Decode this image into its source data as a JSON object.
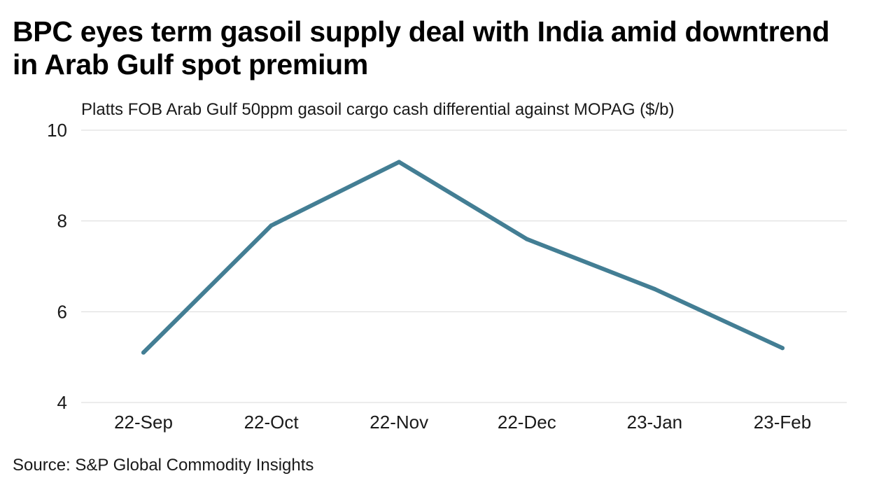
{
  "header": {
    "title": "BPC eyes term gasoil supply deal with India amid downtrend in Arab Gulf spot premium"
  },
  "footer": {
    "source": "Source: S&P Global Commodity Insights"
  },
  "colors": {
    "series": "#437e94",
    "grid": "#d9d9d9"
  },
  "chart_data": {
    "type": "line",
    "title": "BPC eyes term gasoil supply deal with India amid downtrend in Arab Gulf spot premium",
    "subtitle": "Platts FOB Arab Gulf 50ppm gasoil cargo cash differential against MOPAG ($/b)",
    "xlabel": "",
    "ylabel": "",
    "categories": [
      "22-Sep",
      "22-Oct",
      "22-Nov",
      "22-Dec",
      "23-Jan",
      "23-Feb"
    ],
    "series": [
      {
        "name": "FOB Arab Gulf 50ppm gasoil cash differential",
        "values": [
          5.1,
          7.9,
          9.3,
          7.6,
          6.5,
          5.2
        ]
      }
    ],
    "ylim": [
      4,
      10
    ],
    "yticks": [
      4,
      6,
      8,
      10
    ],
    "grid": true,
    "legend": "none"
  }
}
